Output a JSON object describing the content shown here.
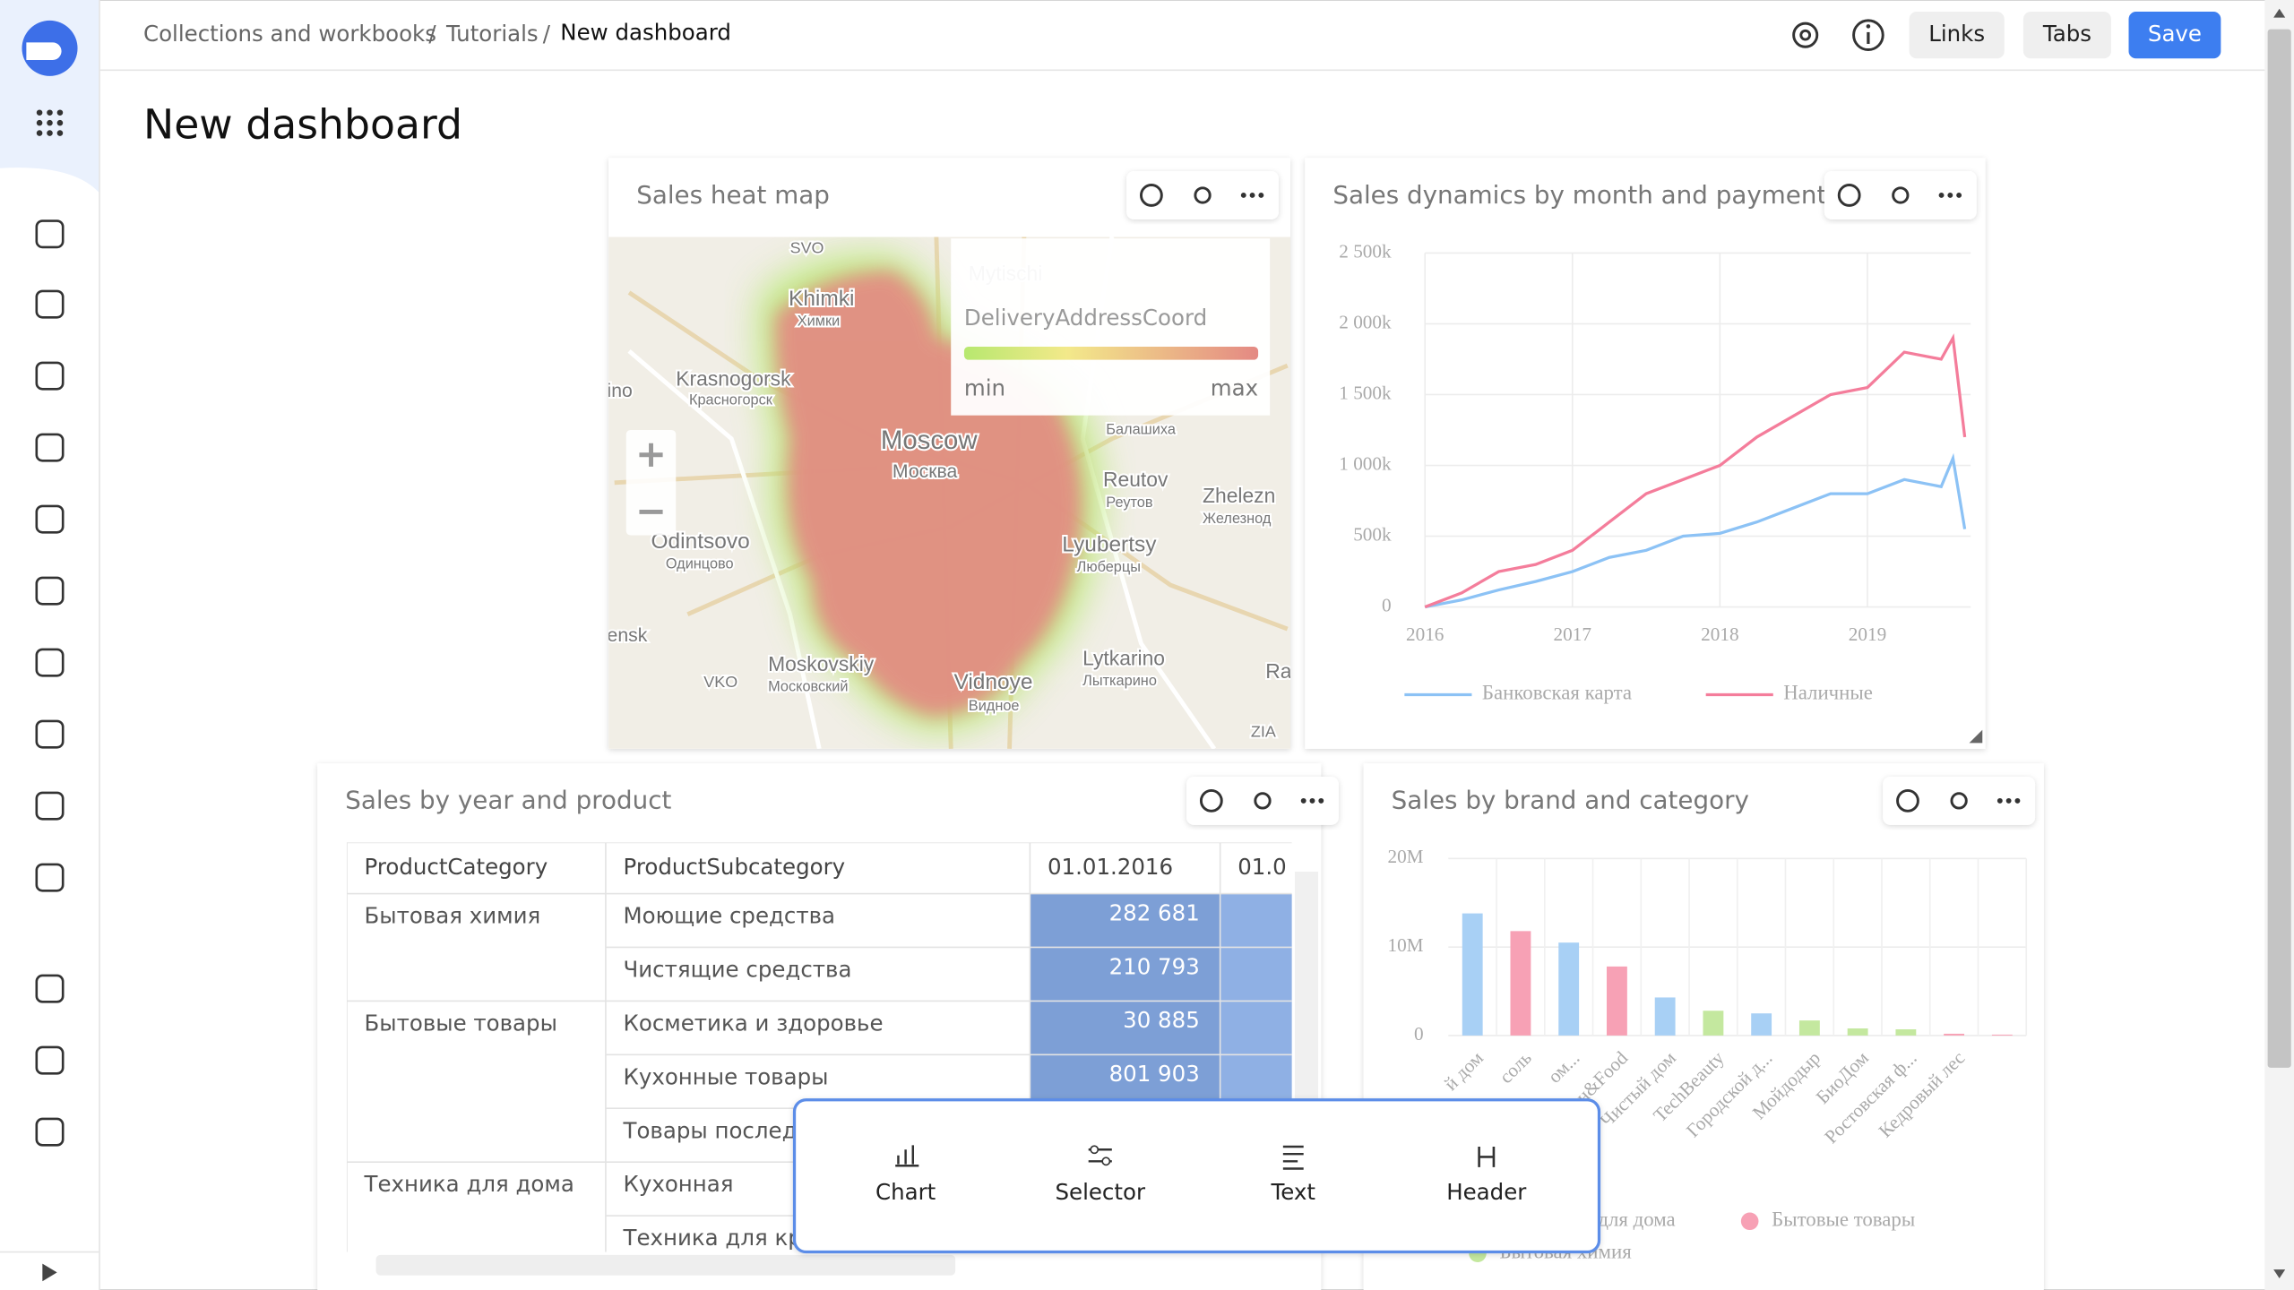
{
  "header": {
    "breadcrumbs": [
      "Collections and workbooks",
      "Tutorials",
      "New dashboard"
    ],
    "separators": [
      "/",
      "/"
    ],
    "buttons": [
      "Links",
      "Tabs",
      "Save"
    ]
  },
  "title": "New dashboard",
  "heatmap": {
    "title": "Sales heat map",
    "legend": {
      "field": "DeliveryAddressCoord",
      "min": "min",
      "max": "max"
    },
    "map_labels": [
      "SVO",
      "Mytischi",
      "Khimki",
      "Химки",
      "Krasnogorsk",
      "Красногорск",
      "ino",
      "Moscow",
      "Москва",
      "Балашиха",
      "Reutov",
      "Реутов",
      "Zhelezn",
      "Железнод",
      "Odintsovo",
      "Одинцово",
      "Lyubertsy",
      "Люберцы",
      "ensk",
      "VKO",
      "Moskovskiy",
      "Московский",
      "Vidnoye",
      "Видное",
      "Lytkarino",
      "Лыткарино",
      "Ra",
      "ZIA"
    ]
  },
  "table": {
    "title": "Sales by year and product",
    "columns": [
      "ProductCategory",
      "ProductSubcategory",
      "01.01.2016",
      "01.0"
    ],
    "rows": [
      [
        "Бытовая химия",
        "Моющие средства",
        "282 681"
      ],
      [
        null,
        "Чистящие средства",
        "210 793"
      ],
      [
        "Бытовые товары",
        "Косметика и здоровье",
        "30 885"
      ],
      [
        null,
        "Кухонные товары",
        "801 903"
      ],
      [
        null,
        "Товары послед",
        null
      ],
      [
        "Техника для дома",
        "Кухонная",
        null
      ],
      [
        null,
        "Техника для кр",
        null
      ]
    ]
  },
  "chart_data": [
    {
      "type": "line",
      "title": "Sales dynamics by month and payment type",
      "x": [
        2016,
        2016.25,
        2016.5,
        2016.75,
        2017,
        2017.25,
        2017.5,
        2017.75,
        2018,
        2018.25,
        2018.5,
        2018.75,
        2019,
        2019.25,
        2019.5,
        2019.58,
        2019.66
      ],
      "series": [
        {
          "name": "Банковская карта",
          "color": "#8cc2f5",
          "values": [
            0,
            50000,
            120000,
            180000,
            250000,
            350000,
            400000,
            500000,
            520000,
            600000,
            700000,
            800000,
            800000,
            900000,
            850000,
            1050000,
            550000
          ]
        },
        {
          "name": "Наличные",
          "color": "#f47d9b",
          "values": [
            0,
            100000,
            250000,
            300000,
            400000,
            600000,
            800000,
            900000,
            1000000,
            1200000,
            1350000,
            1500000,
            1550000,
            1800000,
            1750000,
            1900000,
            1200000
          ]
        }
      ],
      "xlim": [
        2016,
        2019.7
      ],
      "xticks": [
        2016,
        2017,
        2018,
        2019
      ],
      "ylim": [
        0,
        2500000
      ],
      "yticks": [
        0,
        {
          "value": 500000,
          "label": "500k"
        },
        {
          "value": 1000000,
          "label": "1 000k"
        },
        {
          "value": 1500000,
          "label": "1 500k"
        },
        {
          "value": 2000000,
          "label": "2 000k"
        },
        {
          "value": 2500000,
          "label": "2 500k"
        }
      ],
      "grid": true
    },
    {
      "type": "bar",
      "title": "Sales by brand and category",
      "categories": [
        "й дом",
        "соль",
        "ом...",
        "ен&Food",
        "Чистый дом",
        "TechBeauty",
        "Городской д...",
        "Мойдодыр",
        "БиоДом",
        "Ростовская ф...",
        "Кедровый лес",
        null
      ],
      "series": [
        {
          "name": "Техника для дома",
          "color": "#a8d0f5",
          "values": [
            13800000,
            null,
            10500000,
            null,
            4300000,
            null,
            2500000,
            null,
            null,
            null,
            null,
            null
          ]
        },
        {
          "name": "Бытовые товары",
          "color": "#f7a1b5",
          "values": [
            null,
            11800000,
            null,
            7800000,
            null,
            null,
            null,
            null,
            null,
            null,
            200000,
            100000
          ]
        },
        {
          "name": "Бытовая химия",
          "color": "#c4e89f",
          "values": [
            null,
            null,
            null,
            null,
            null,
            2800000,
            null,
            1700000,
            800000,
            700000,
            null,
            null
          ]
        }
      ],
      "ylim": [
        0,
        20000000
      ],
      "yticks": [
        0,
        {
          "value": 10000000,
          "label": "10M"
        },
        {
          "value": 20000000,
          "label": "20M"
        }
      ],
      "grid": true
    }
  ],
  "add_menu": [
    "Chart",
    "Selector",
    "Text",
    "Header"
  ]
}
